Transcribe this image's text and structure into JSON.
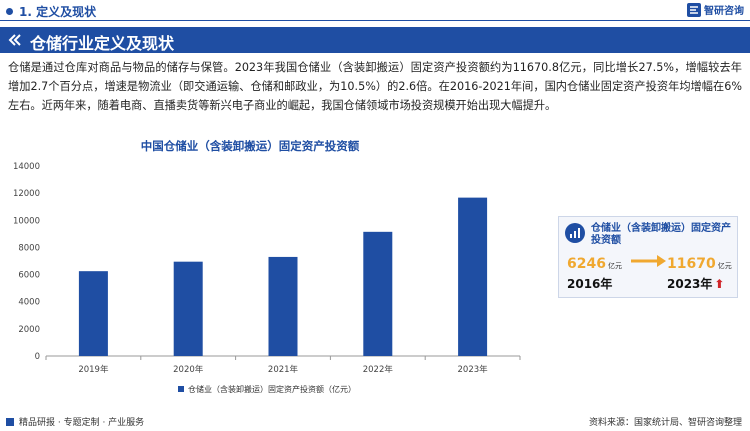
{
  "header": {
    "section_label": "1. 定义及现状",
    "logo_text": "智研咨询"
  },
  "banner": {
    "title": "仓储行业定义及现状"
  },
  "intro_text": "仓储是通过仓库对商品与物品的储存与保管。2023年我国仓储业（含装卸搬运）固定资产投资额约为11670.8亿元，同比增长27.5%，增幅较去年增加2.7个百分点，增速是物流业（即交通运输、仓储和邮政业，为10.5%）的2.6倍。在2016-2021年间，国内仓储业固定资产投资年均增幅在6%左右。近两年来，随着电商、直播卖货等新兴电子商业的崛起，我国仓储领域市场投资规模开始出现大幅提升。",
  "chart_data": {
    "type": "bar",
    "title": "中国仓储业（含装卸搬运）固定资产投资额",
    "categories": [
      "2019年",
      "2020年",
      "2021年",
      "2022年",
      "2023年"
    ],
    "series": [
      {
        "name": "仓储业（含装卸搬运）固定资产投资额（亿元）",
        "values": [
          6250,
          6950,
          7300,
          9150,
          11670
        ]
      }
    ],
    "ylim": [
      0,
      14000
    ],
    "yticks": [
      0,
      2000,
      4000,
      6000,
      8000,
      10000,
      12000,
      14000
    ],
    "grid": false,
    "legend_position": "bottom",
    "bar_color": "#1f4ea3"
  },
  "side_card": {
    "title": "仓储业（含装卸搬运）固定资产投资额",
    "left_value": "6246",
    "left_unit": "亿元",
    "left_year": "2016年",
    "right_value": "11670",
    "right_unit": "亿元",
    "right_year": "2023年",
    "up_arrow": "⬆"
  },
  "footer": {
    "left": "精品研报 · 专题定制 · 产业服务",
    "right": "资料来源：国家统计局、智研咨询整理"
  },
  "colors": {
    "brand_blue": "#1f4ea3",
    "accent_orange": "#f0a830",
    "up_red": "#d0262a"
  }
}
